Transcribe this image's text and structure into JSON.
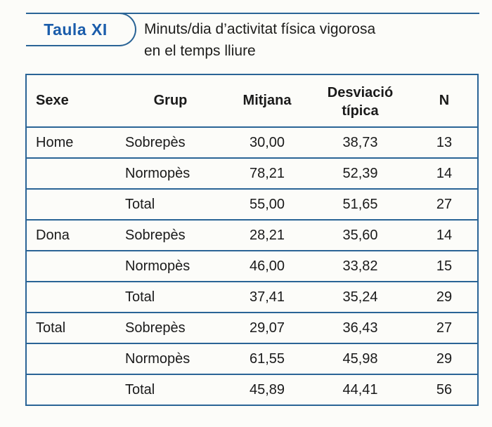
{
  "header": {
    "tab_label": "Taula XI",
    "title_line1": "Minuts/dia d’activitat física vigorosa",
    "title_line2": "en el temps lliure"
  },
  "colors": {
    "accent_blue": "#1b5dab",
    "border_blue": "#2a6496",
    "text": "#1d1d1b",
    "background": "#fcfcf9"
  },
  "table": {
    "headers": {
      "sexe": "Sexe",
      "grup": "Grup",
      "mitjana": "Mitjana",
      "desviacio": "Desviació típica",
      "n": "N"
    },
    "rows": [
      {
        "sexe": "Home",
        "grup": "Sobrepès",
        "mitjana": "30,00",
        "desviacio": "38,73",
        "n": "13"
      },
      {
        "sexe": "",
        "grup": "Normopès",
        "mitjana": "78,21",
        "desviacio": "52,39",
        "n": "14"
      },
      {
        "sexe": "",
        "grup": "Total",
        "mitjana": "55,00",
        "desviacio": "51,65",
        "n": "27"
      },
      {
        "sexe": "Dona",
        "grup": "Sobrepès",
        "mitjana": "28,21",
        "desviacio": "35,60",
        "n": "14"
      },
      {
        "sexe": "",
        "grup": "Normopès",
        "mitjana": "46,00",
        "desviacio": "33,82",
        "n": "15"
      },
      {
        "sexe": "",
        "grup": "Total",
        "mitjana": "37,41",
        "desviacio": "35,24",
        "n": "29"
      },
      {
        "sexe": "Total",
        "grup": "Sobrepès",
        "mitjana": "29,07",
        "desviacio": "36,43",
        "n": "27"
      },
      {
        "sexe": "",
        "grup": "Normopès",
        "mitjana": "61,55",
        "desviacio": "45,98",
        "n": "29"
      },
      {
        "sexe": "",
        "grup": "Total",
        "mitjana": "45,89",
        "desviacio": "44,41",
        "n": "56"
      }
    ]
  }
}
